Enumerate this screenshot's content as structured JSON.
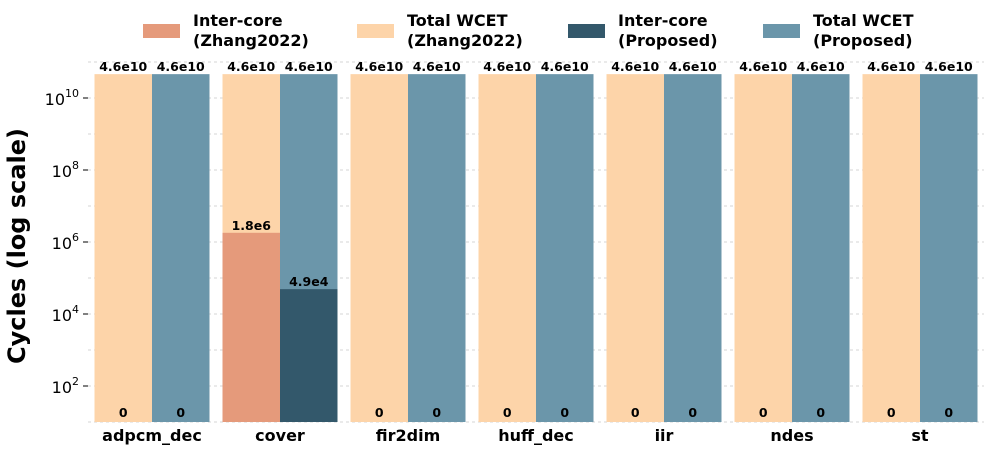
{
  "chart_data": {
    "type": "bar",
    "ylabel": "Cycles (log scale)",
    "yscale": "log",
    "ylim": [
      10,
      100000000000
    ],
    "yticks": [
      {
        "value": 100,
        "base": "10",
        "exp": "2"
      },
      {
        "value": 10000,
        "base": "10",
        "exp": "4"
      },
      {
        "value": 1000000,
        "base": "10",
        "exp": "6"
      },
      {
        "value": 100000000,
        "base": "10",
        "exp": "8"
      },
      {
        "value": 10000000000,
        "base": "10",
        "exp": "10"
      }
    ],
    "grid": true,
    "legend_position": "top",
    "categories": [
      "adpcm_dec",
      "cover",
      "fir2dim",
      "huff_dec",
      "iir",
      "ndes",
      "st"
    ],
    "series": [
      {
        "name_line1": "Inter-core",
        "name_line2": "(Zhang2022)",
        "color": "#e59a7b",
        "group": "Zhang2022",
        "layer": "front",
        "values": [
          0,
          1800000,
          0,
          0,
          0,
          0,
          0
        ],
        "labels": [
          "0",
          "1.8e6",
          "0",
          "0",
          "0",
          "0",
          "0"
        ]
      },
      {
        "name_line1": "Total WCET",
        "name_line2": "(Zhang2022)",
        "color": "#fdd4a9",
        "group": "Zhang2022",
        "layer": "back",
        "values": [
          46000000000,
          46000000000,
          46000000000,
          46000000000,
          46000000000,
          46000000000,
          46000000000
        ],
        "labels": [
          "4.6e10",
          "4.6e10",
          "4.6e10",
          "4.6e10",
          "4.6e10",
          "4.6e10",
          "4.6e10"
        ]
      },
      {
        "name_line1": "Inter-core",
        "name_line2": "(Proposed)",
        "color": "#33586b",
        "group": "Proposed",
        "layer": "front",
        "values": [
          0,
          49000,
          0,
          0,
          0,
          0,
          0
        ],
        "labels": [
          "0",
          "4.9e4",
          "0",
          "0",
          "0",
          "0",
          "0"
        ]
      },
      {
        "name_line1": "Total WCET",
        "name_line2": "(Proposed)",
        "color": "#6b96aa",
        "group": "Proposed",
        "layer": "back",
        "values": [
          46000000000,
          46000000000,
          46000000000,
          46000000000,
          46000000000,
          46000000000,
          46000000000
        ],
        "labels": [
          "4.6e10",
          "4.6e10",
          "4.6e10",
          "4.6e10",
          "4.6e10",
          "4.6e10",
          "4.6e10"
        ]
      }
    ]
  }
}
